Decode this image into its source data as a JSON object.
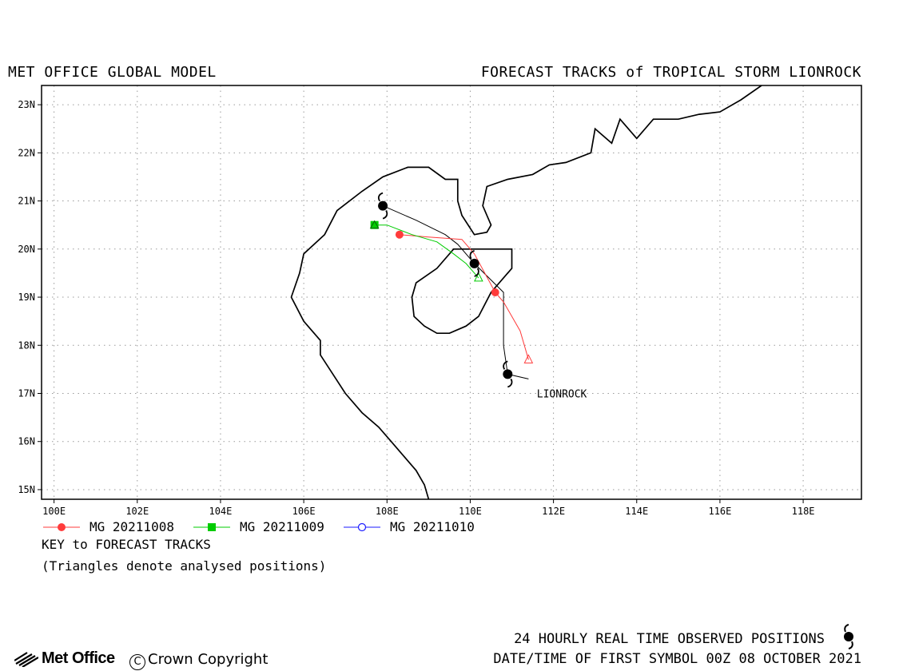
{
  "header": {
    "left": "MET OFFICE GLOBAL MODEL",
    "right": "FORECAST TRACKS of TROPICAL STORM LIONROCK"
  },
  "map": {
    "lon_range": [
      99.7,
      119.4
    ],
    "lat_range": [
      14.8,
      23.4
    ],
    "lon_ticks": [
      "100E",
      "102E",
      "104E",
      "106E",
      "108E",
      "110E",
      "112E",
      "114E",
      "116E",
      "118E"
    ],
    "lat_ticks": [
      "15N",
      "16N",
      "17N",
      "18N",
      "19N",
      "20N",
      "21N",
      "22N",
      "23N"
    ],
    "grid": "dotted",
    "storm_label": "LIONROCK",
    "coastline": [
      [
        [
          109.0,
          14.8
        ],
        [
          108.9,
          15.1
        ],
        [
          108.7,
          15.4
        ],
        [
          108.4,
          15.7
        ],
        [
          108.1,
          16.0
        ],
        [
          107.8,
          16.3
        ],
        [
          107.4,
          16.6
        ],
        [
          107.0,
          17.0
        ],
        [
          106.7,
          17.4
        ],
        [
          106.4,
          17.8
        ],
        [
          106.4,
          18.1
        ],
        [
          106.0,
          18.5
        ],
        [
          105.7,
          19.0
        ],
        [
          105.9,
          19.5
        ],
        [
          106.0,
          19.9
        ],
        [
          106.5,
          20.3
        ],
        [
          106.8,
          20.8
        ],
        [
          107.4,
          21.2
        ],
        [
          107.9,
          21.5
        ],
        [
          108.5,
          21.7
        ],
        [
          109.0,
          21.7
        ],
        [
          109.4,
          21.45
        ],
        [
          109.7,
          21.45
        ],
        [
          109.7,
          21.0
        ],
        [
          109.8,
          20.7
        ],
        [
          110.1,
          20.3
        ],
        [
          110.4,
          20.35
        ],
        [
          110.5,
          20.5
        ],
        [
          110.3,
          20.9
        ],
        [
          110.4,
          21.3
        ],
        [
          110.9,
          21.45
        ],
        [
          111.5,
          21.55
        ],
        [
          111.9,
          21.75
        ],
        [
          112.3,
          21.8
        ],
        [
          112.9,
          22.0
        ],
        [
          113.0,
          22.5
        ],
        [
          113.4,
          22.2
        ],
        [
          113.6,
          22.7
        ],
        [
          114.0,
          22.3
        ],
        [
          114.4,
          22.7
        ],
        [
          115.0,
          22.7
        ],
        [
          115.5,
          22.8
        ],
        [
          116.0,
          22.85
        ],
        [
          116.5,
          23.1
        ],
        [
          117.0,
          23.4
        ]
      ]
    ],
    "island": [
      [
        109.6,
        20.0
      ],
      [
        110.1,
        20.0
      ],
      [
        110.6,
        20.0
      ],
      [
        111.0,
        20.0
      ],
      [
        111.0,
        19.6
      ],
      [
        110.5,
        19.1
      ],
      [
        110.2,
        18.6
      ],
      [
        109.9,
        18.4
      ],
      [
        109.5,
        18.25
      ],
      [
        109.2,
        18.25
      ],
      [
        108.9,
        18.4
      ],
      [
        108.65,
        18.6
      ],
      [
        108.6,
        19.0
      ],
      [
        108.7,
        19.3
      ],
      [
        109.2,
        19.6
      ],
      [
        109.6,
        20.0
      ]
    ]
  },
  "chart_data": {
    "type": "scatter",
    "title": "FORECAST TRACKS of TROPICAL STORM LIONROCK",
    "series": [
      {
        "name": "MG 20211008",
        "color": "#ff3b3b",
        "marker": "circle-filled",
        "track": [
          [
            111.4,
            17.7
          ],
          [
            111.2,
            18.3
          ],
          [
            110.8,
            18.9
          ],
          [
            110.6,
            19.1
          ],
          [
            110.1,
            19.9
          ],
          [
            109.8,
            20.2
          ],
          [
            109.0,
            20.25
          ],
          [
            108.3,
            20.3
          ]
        ],
        "markers": [
          [
            110.6,
            19.1
          ],
          [
            108.3,
            20.3
          ]
        ],
        "analysed": [
          111.4,
          17.7
        ]
      },
      {
        "name": "MG 20211009",
        "color": "#00cc00",
        "marker": "square-filled",
        "track": [
          [
            110.2,
            19.4
          ],
          [
            109.9,
            19.7
          ],
          [
            109.6,
            19.9
          ],
          [
            109.2,
            20.15
          ],
          [
            108.6,
            20.3
          ],
          [
            108.0,
            20.5
          ],
          [
            107.7,
            20.5
          ]
        ],
        "markers": [
          [
            107.7,
            20.5
          ]
        ],
        "analysed": [
          110.2,
          19.4
        ]
      },
      {
        "name": "MG 20211010",
        "color": "#1a1aff",
        "marker": "circle-open",
        "track": [],
        "markers": [],
        "analysed": null
      }
    ],
    "observed_track": [
      [
        111.4,
        17.3
      ],
      [
        110.9,
        17.4
      ],
      [
        110.8,
        18.0
      ],
      [
        110.8,
        19.1
      ],
      [
        110.1,
        19.7
      ],
      [
        109.7,
        20.1
      ],
      [
        109.4,
        20.3
      ],
      [
        108.7,
        20.6
      ],
      [
        107.9,
        20.9
      ]
    ],
    "observed_positions": [
      [
        110.9,
        17.4
      ],
      [
        110.1,
        19.7
      ],
      [
        107.9,
        20.9
      ]
    ]
  },
  "key": {
    "title": "KEY to FORECAST TRACKS",
    "note": "(Triangles denote analysed positions)"
  },
  "footer": {
    "observed": "24 HOURLY REAL TIME OBSERVED POSITIONS",
    "date": "DATE/TIME OF FIRST SYMBOL 00Z 08 OCTOBER 2021",
    "logo": "Met Office",
    "copyright": "Crown Copyright",
    "copyright_symbol": "C"
  }
}
